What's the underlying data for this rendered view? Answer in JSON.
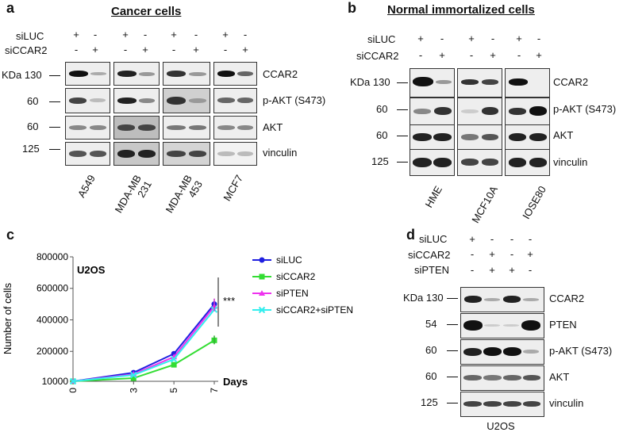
{
  "panel_a": {
    "letter": "a",
    "title": "Cancer cells",
    "row_labels": [
      "siLUC",
      "siCCAR2"
    ],
    "signs": [
      [
        "+",
        "-",
        "+",
        "-",
        "+",
        "-",
        "+",
        "-"
      ],
      [
        "-",
        "+",
        "-",
        "+",
        "-",
        "+",
        "-",
        "+"
      ]
    ],
    "mw": [
      "KDa 130",
      "60",
      "60",
      "125"
    ],
    "proteins": [
      "CCAR2",
      "p-AKT (S473)",
      "AKT",
      "vinculin"
    ],
    "cell_lines": [
      "A549",
      "MDA-MB 231",
      "MDA-MB 453",
      "MCF7"
    ],
    "cell_line_l1": [
      "A549",
      "MDA-MB",
      "MDA-MB",
      "MCF7"
    ],
    "cell_line_l2": [
      "",
      "231",
      "453",
      ""
    ]
  },
  "panel_b": {
    "letter": "b",
    "title": "Normal immortalized cells",
    "row_labels": [
      "siLUC",
      "siCCAR2"
    ],
    "signs": [
      [
        "+",
        "-",
        "+",
        "-",
        "+",
        "-"
      ],
      [
        "-",
        "+",
        "-",
        "+",
        "-",
        "+"
      ]
    ],
    "mw": [
      "KDa 130",
      "60",
      "60",
      "125"
    ],
    "proteins": [
      "CCAR2",
      "p-AKT (S473)",
      "AKT",
      "vinculin"
    ],
    "cell_lines": [
      "HME",
      "MCF10A",
      "IOSE80"
    ]
  },
  "panel_c": {
    "letter": "c",
    "inset_title": "U2OS",
    "significance": "***",
    "chart_data": {
      "type": "line",
      "x": [
        0,
        3,
        5,
        7
      ],
      "xlabel": "Days",
      "ylabel": "Number of cells",
      "y_ticks": [
        "10000",
        "200000",
        "400000",
        "600000",
        "800000"
      ],
      "x_ticks": [
        "0",
        "3",
        "5",
        "7"
      ],
      "ylim": [
        10000,
        800000
      ],
      "legend_position": "top-right",
      "series": [
        {
          "name": "siLUC",
          "color": "#1f1fe0",
          "marker": "circle",
          "values": [
            10000,
            65000,
            185000,
            500000
          ]
        },
        {
          "name": "siCCAR2",
          "color": "#33dd33",
          "marker": "square",
          "values": [
            10000,
            30000,
            115000,
            270000
          ]
        },
        {
          "name": "siPTEN",
          "color": "#ee33ee",
          "marker": "triangle",
          "values": [
            10000,
            55000,
            165000,
            485000
          ]
        },
        {
          "name": "siCCAR2+siPTEN",
          "color": "#33eeee",
          "marker": "x",
          "values": [
            10000,
            50000,
            150000,
            465000
          ]
        }
      ]
    }
  },
  "panel_d": {
    "letter": "d",
    "row_labels": [
      "siLUC",
      "siCCAR2",
      "siPTEN"
    ],
    "signs": [
      [
        "+",
        "-",
        "-",
        "-"
      ],
      [
        "-",
        "+",
        "-",
        "+"
      ],
      [
        "-",
        "+",
        "+",
        "-"
      ]
    ],
    "mw": [
      "KDa 130",
      "54",
      "60",
      "60",
      "125"
    ],
    "proteins": [
      "CCAR2",
      "PTEN",
      "p-AKT (S473)",
      "AKT",
      "vinculin"
    ],
    "cell_line": "U2OS"
  }
}
